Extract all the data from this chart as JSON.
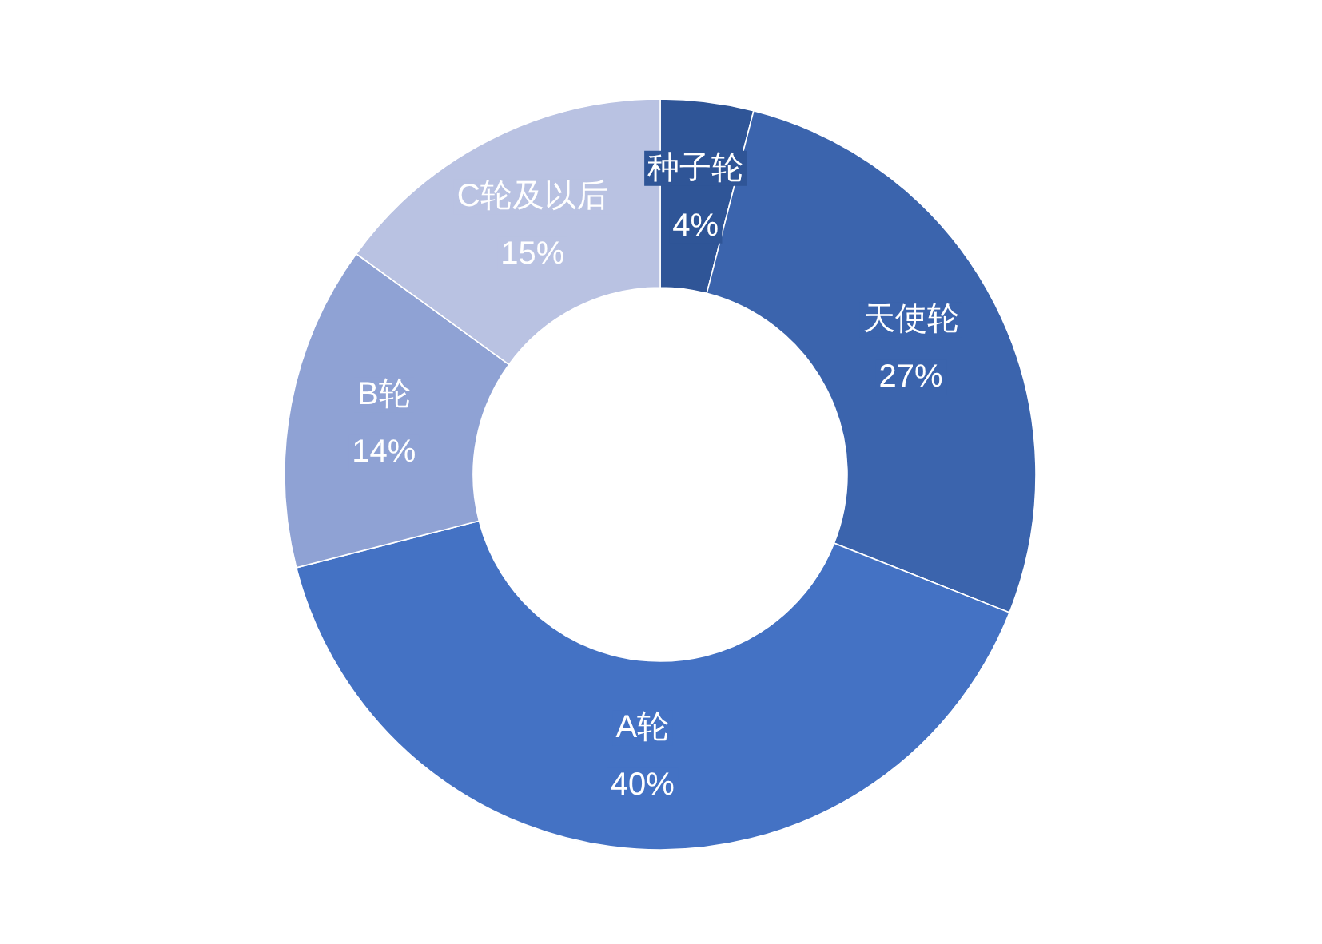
{
  "chart_data": {
    "type": "donut",
    "categories": [
      "种子轮",
      "天使轮",
      "A轮",
      "B轮",
      "C轮及以后"
    ],
    "values": [
      4,
      27,
      40,
      14,
      15
    ],
    "colors": [
      "#2f5597",
      "#3b64ad",
      "#4472c4",
      "#8fa2d4",
      "#b9c2e2"
    ],
    "value_labels": [
      "4%",
      "27%",
      "40%",
      "14%",
      "15%"
    ]
  }
}
